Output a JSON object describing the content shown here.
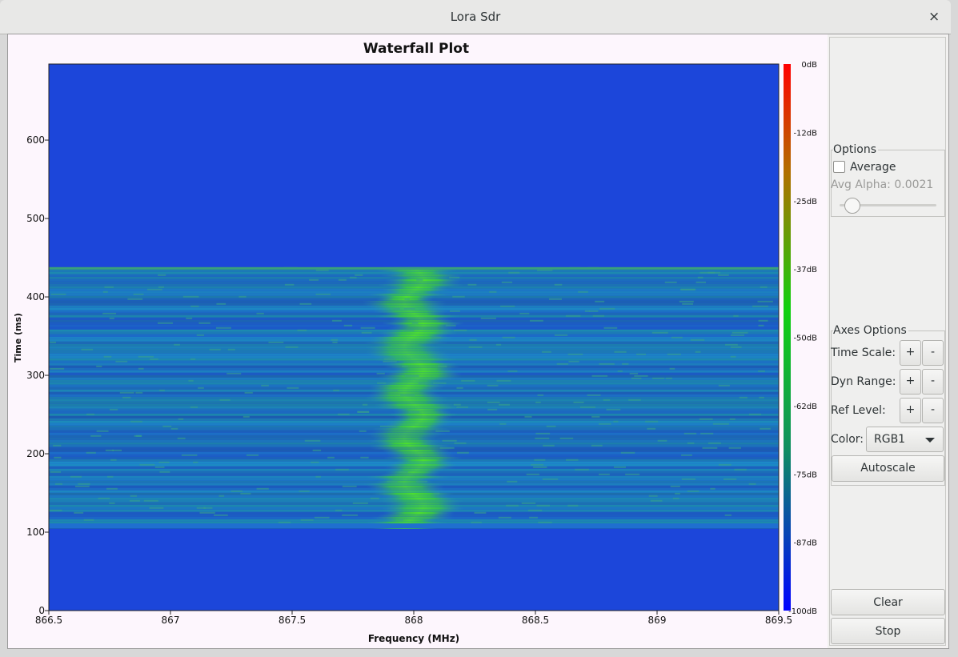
{
  "window": {
    "title": "Lora Sdr",
    "close": "×"
  },
  "plot": {
    "title": "Waterfall Plot",
    "x_label": "Frequency (MHz)",
    "y_label": "Time (ms)",
    "xlim": [
      866.5,
      869.5
    ],
    "xticks": [
      866.5,
      867,
      867.5,
      868,
      868.5,
      869,
      869.5
    ],
    "ylim": [
      0,
      697
    ],
    "yticks": [
      0,
      100,
      200,
      300,
      400,
      500,
      600
    ],
    "colorbar_labels": [
      "0dB",
      "-12dB",
      "-25dB",
      "-37dB",
      "-50dB",
      "-62dB",
      "-75dB",
      "-87dB",
      "-100dB"
    ]
  },
  "panel": {
    "options": {
      "title": "Options",
      "average": "Average",
      "avg_alpha": "Avg Alpha: 0.0021"
    },
    "axes_options": {
      "title": "Axes Options",
      "rows": [
        {
          "label": "Time Scale:",
          "plus": "+",
          "minus": "-"
        },
        {
          "label": "Dyn Range:",
          "plus": "+",
          "minus": "-"
        },
        {
          "label": "Ref Level:",
          "plus": "+",
          "minus": "-"
        }
      ],
      "color_label": "Color:",
      "color_value": "RGB1",
      "autoscale": "Autoscale"
    },
    "clear": "Clear",
    "stop": "Stop"
  }
}
